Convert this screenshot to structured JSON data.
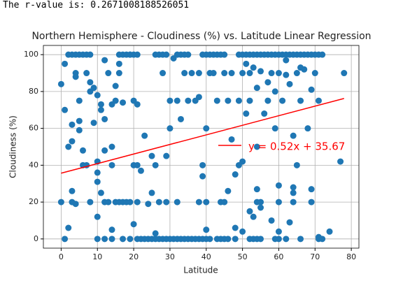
{
  "output": {
    "text": "The r-value is: 0.2671008188526051"
  },
  "chart_data": {
    "type": "scatter",
    "title": "Northern Hemisphere - Cloudiness (%) vs. Latitude Linear Regression",
    "xlabel": "Latitude",
    "ylabel": "Cloudiness (%)",
    "xlim": [
      -4.9,
      82.1
    ],
    "ylim": [
      -5,
      105
    ],
    "xticks": [
      0,
      10,
      20,
      30,
      40,
      50,
      60,
      70,
      80
    ],
    "yticks": [
      0,
      20,
      40,
      60,
      80,
      100
    ],
    "grid": true,
    "series": [
      {
        "color": "#1f77b4",
        "x": [
          2,
          3,
          4,
          5,
          6,
          7,
          8,
          16,
          17,
          18,
          19,
          20,
          21,
          26,
          27,
          28,
          29,
          32,
          33,
          34,
          35,
          39,
          40,
          41,
          42,
          43,
          44,
          45,
          49,
          50,
          51,
          52,
          53,
          54,
          55,
          56,
          57,
          58,
          59,
          60,
          61,
          62,
          63,
          64,
          65,
          66,
          67,
          68,
          69,
          70,
          71,
          72,
          1,
          10,
          12,
          14,
          17,
          19,
          21,
          22,
          23,
          24,
          25,
          26,
          27,
          28,
          29,
          30,
          31,
          32,
          33,
          34,
          35,
          36,
          37,
          38,
          39,
          40,
          41,
          43,
          44,
          45,
          46,
          48,
          52,
          53,
          54,
          55,
          59,
          60,
          62,
          66,
          71,
          0,
          3,
          8,
          12,
          13,
          15,
          16,
          17,
          18,
          19,
          21,
          27,
          29,
          32,
          38,
          40,
          44,
          45,
          54,
          55,
          60,
          64,
          69,
          0,
          1,
          1,
          2,
          2,
          3,
          3,
          3,
          4,
          4,
          4,
          5,
          5,
          5,
          6,
          6,
          7,
          7,
          8,
          8,
          9,
          9,
          10,
          10,
          10,
          10,
          10,
          11,
          11,
          11,
          12,
          12,
          12,
          13,
          14,
          14,
          14,
          14,
          15,
          15,
          16,
          16,
          17,
          19,
          20,
          20,
          20,
          21,
          21,
          22,
          23,
          24,
          25,
          25,
          26,
          26,
          28,
          29,
          30,
          30,
          31,
          32,
          33,
          34,
          35,
          36,
          37,
          38,
          38,
          39,
          39,
          40,
          40,
          41,
          42,
          43,
          45,
          46,
          46,
          47,
          47,
          48,
          48,
          49,
          49,
          50,
          50,
          50,
          51,
          51,
          52,
          52,
          52,
          53,
          53,
          54,
          54,
          54,
          55,
          55,
          56,
          57,
          57,
          58,
          58,
          59,
          59,
          60,
          60,
          60,
          61,
          62,
          62,
          63,
          63,
          64,
          64,
          64,
          65,
          65,
          66,
          66,
          67,
          68,
          69,
          69,
          70,
          71,
          71,
          72,
          74,
          77,
          78
        ],
        "y": [
          100,
          100,
          100,
          100,
          100,
          100,
          100,
          100,
          100,
          100,
          100,
          100,
          100,
          100,
          100,
          100,
          100,
          100,
          100,
          100,
          100,
          100,
          100,
          100,
          100,
          100,
          100,
          100,
          100,
          100,
          100,
          100,
          100,
          100,
          100,
          100,
          100,
          100,
          100,
          100,
          100,
          100,
          100,
          100,
          100,
          100,
          100,
          100,
          100,
          100,
          100,
          100,
          0,
          0,
          0,
          0,
          0,
          0,
          0,
          0,
          0,
          0,
          0,
          0,
          0,
          0,
          0,
          0,
          0,
          0,
          0,
          0,
          0,
          0,
          0,
          0,
          0,
          0,
          0,
          0,
          0,
          0,
          0,
          0,
          0,
          0,
          0,
          0,
          0,
          0,
          0,
          0,
          0,
          20,
          20,
          20,
          20,
          20,
          20,
          20,
          20,
          20,
          20,
          20,
          20,
          20,
          20,
          20,
          20,
          20,
          20,
          20,
          20,
          20,
          20,
          20,
          84,
          95,
          70,
          6,
          50,
          53,
          62,
          26,
          19,
          90,
          88,
          75,
          64,
          59,
          40,
          48,
          90,
          40,
          85,
          80,
          82,
          63,
          78,
          42,
          36,
          31,
          12,
          73,
          70,
          25,
          97,
          65,
          48,
          90,
          73,
          50,
          40,
          5,
          83,
          75,
          95,
          90,
          74,
          100,
          75,
          40,
          8,
          40,
          73,
          37,
          56,
          19,
          45,
          25,
          40,
          3,
          90,
          45,
          60,
          75,
          98,
          75,
          65,
          90,
          75,
          90,
          75,
          77,
          90,
          40,
          34,
          60,
          5,
          90,
          90,
          75,
          90,
          26,
          75,
          90,
          54,
          6,
          35,
          75,
          40,
          4,
          42,
          90,
          68,
          95,
          15,
          75,
          90,
          93,
          12,
          27,
          82,
          50,
          17,
          91,
          68,
          75,
          85,
          90,
          10,
          80,
          60,
          90,
          4,
          29,
          75,
          97,
          89,
          84,
          9,
          56,
          28,
          25,
          90,
          40,
          93,
          75,
          92,
          60,
          81,
          27,
          90,
          75,
          1,
          0,
          4,
          42,
          90
        ]
      }
    ],
    "regression": {
      "color": "#ff0000",
      "x": [
        0,
        78
      ],
      "y": [
        35.67,
        76.23
      ]
    },
    "annotation": "y = 0.52x + 35.67"
  }
}
